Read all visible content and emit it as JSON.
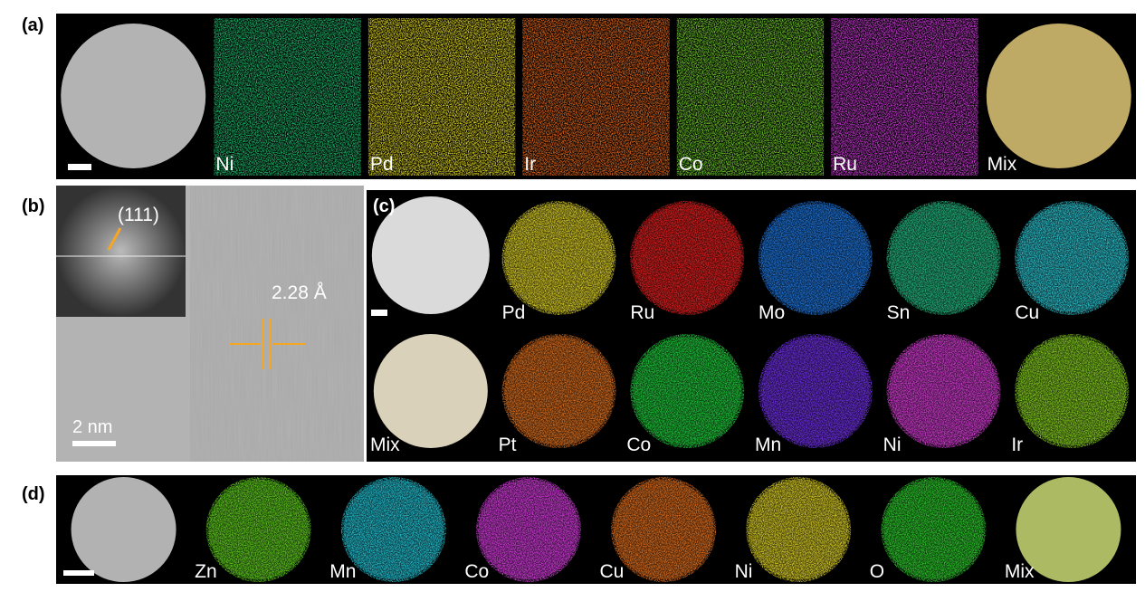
{
  "panel_a": {
    "label": "(a)",
    "tiles": [
      "Ni",
      "Pd",
      "Ir",
      "Co",
      "Ru",
      "Mix"
    ]
  },
  "panel_b": {
    "label": "(b)",
    "fft_label": "(111)",
    "spacing": "2.28 Å",
    "scale_bar": "2 nm"
  },
  "panel_c": {
    "label": "(c)",
    "row1": [
      "Pd",
      "Ru",
      "Mo",
      "Sn",
      "Cu"
    ],
    "row2": [
      "Mix",
      "Pt",
      "Co",
      "Mn",
      "Ni",
      "Ir"
    ]
  },
  "panel_d": {
    "label": "(d)",
    "tiles": [
      "Zn",
      "Mn",
      "Co",
      "Cu",
      "Ni",
      "O",
      "Mix"
    ]
  }
}
